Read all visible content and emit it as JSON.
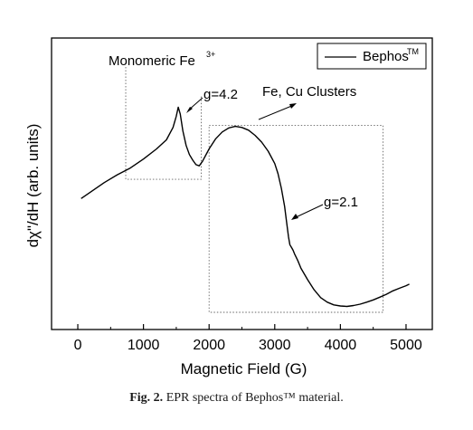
{
  "chart_data": {
    "type": "line",
    "xlabel": "Magnetic Field (G)",
    "ylabel": "dχ\"/dH (arb. units)",
    "xlim": [
      -400,
      5400
    ],
    "ylim": [
      0,
      100
    ],
    "xticks": [
      0,
      1000,
      2000,
      3000,
      4000,
      5000
    ],
    "yticks_visible": false,
    "legend_position": "top-right",
    "series": [
      {
        "name": "Bephos",
        "name_superscript": "TM",
        "x": [
          50,
          200,
          400,
          600,
          800,
          1000,
          1200,
          1350,
          1450,
          1500,
          1530,
          1560,
          1600,
          1650,
          1700,
          1750,
          1800,
          1850,
          1900,
          2000,
          2100,
          2200,
          2300,
          2400,
          2500,
          2600,
          2700,
          2800,
          2900,
          3000,
          3050,
          3100,
          3150,
          3180,
          3210,
          3230,
          3260,
          3280,
          3300,
          3350,
          3400,
          3500,
          3600,
          3700,
          3800,
          3900,
          4000,
          4100,
          4200,
          4300,
          4400,
          4500,
          4600,
          4700,
          4800,
          4900,
          5000,
          5050
        ],
        "y": [
          50.5,
          53.5,
          57.5,
          61.0,
          64.0,
          68.0,
          72.5,
          76.5,
          82.0,
          87.0,
          91.0,
          88.0,
          80.5,
          74.0,
          70.0,
          67.5,
          65.5,
          65.0,
          67.0,
          72.5,
          77.0,
          80.0,
          81.8,
          82.5,
          82.0,
          80.8,
          78.5,
          75.5,
          71.5,
          66.0,
          61.5,
          55.0,
          47.0,
          40.0,
          33.5,
          30.0,
          28.5,
          27.5,
          26.0,
          23.0,
          19.5,
          14.5,
          10.0,
          6.5,
          4.5,
          3.3,
          2.8,
          2.6,
          3.0,
          3.6,
          4.5,
          5.5,
          6.7,
          8.0,
          9.5,
          10.7,
          11.8,
          12.5
        ]
      }
    ],
    "annotations": {
      "monomeric_label": "Monomeric Fe",
      "monomeric_label_sup": "3+",
      "g42_label": "g=4.2",
      "clusters_label": "Fe, Cu Clusters",
      "g21_label": "g=2.1",
      "monomeric_box_x": [
        730,
        1880
      ],
      "monomeric_box_y": [
        59,
        96
      ],
      "clusters_box_x": [
        2000,
        4650
      ],
      "clusters_box_y": [
        0,
        82.5
      ]
    }
  },
  "caption": {
    "prefix": "Fig. 2.",
    "text": "EPR spectra of Bephos™ material."
  }
}
